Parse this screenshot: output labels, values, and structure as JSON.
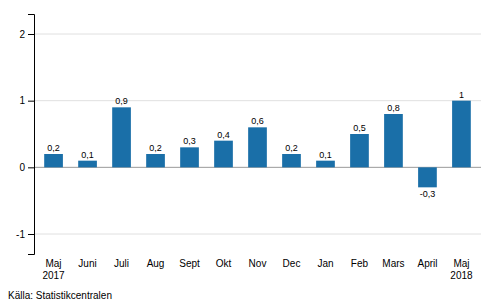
{
  "chart_data": {
    "type": "bar",
    "categories": [
      "Maj\n2017",
      "Juni",
      "Juli",
      "Aug",
      "Sept",
      "Okt",
      "Nov",
      "Dec",
      "Jan",
      "Feb",
      "Mars",
      "April",
      "Maj\n2018"
    ],
    "values": [
      0.2,
      0.1,
      0.9,
      0.2,
      0.3,
      0.4,
      0.6,
      0.2,
      0.1,
      0.5,
      0.8,
      -0.3,
      1.0
    ],
    "value_labels": [
      "0,2",
      "0,1",
      "0,9",
      "0,2",
      "0,3",
      "0,4",
      "0,6",
      "0,2",
      "0,1",
      "0,5",
      "0,8",
      "-0,3",
      "1"
    ],
    "data_labels": true,
    "color": "#1a6fa8",
    "ylim": [
      -1.3,
      2.3
    ],
    "yticks": [
      -1,
      0,
      1,
      2
    ],
    "grid": true,
    "annotations": [
      "Källa: Statistikcentralen"
    ]
  }
}
